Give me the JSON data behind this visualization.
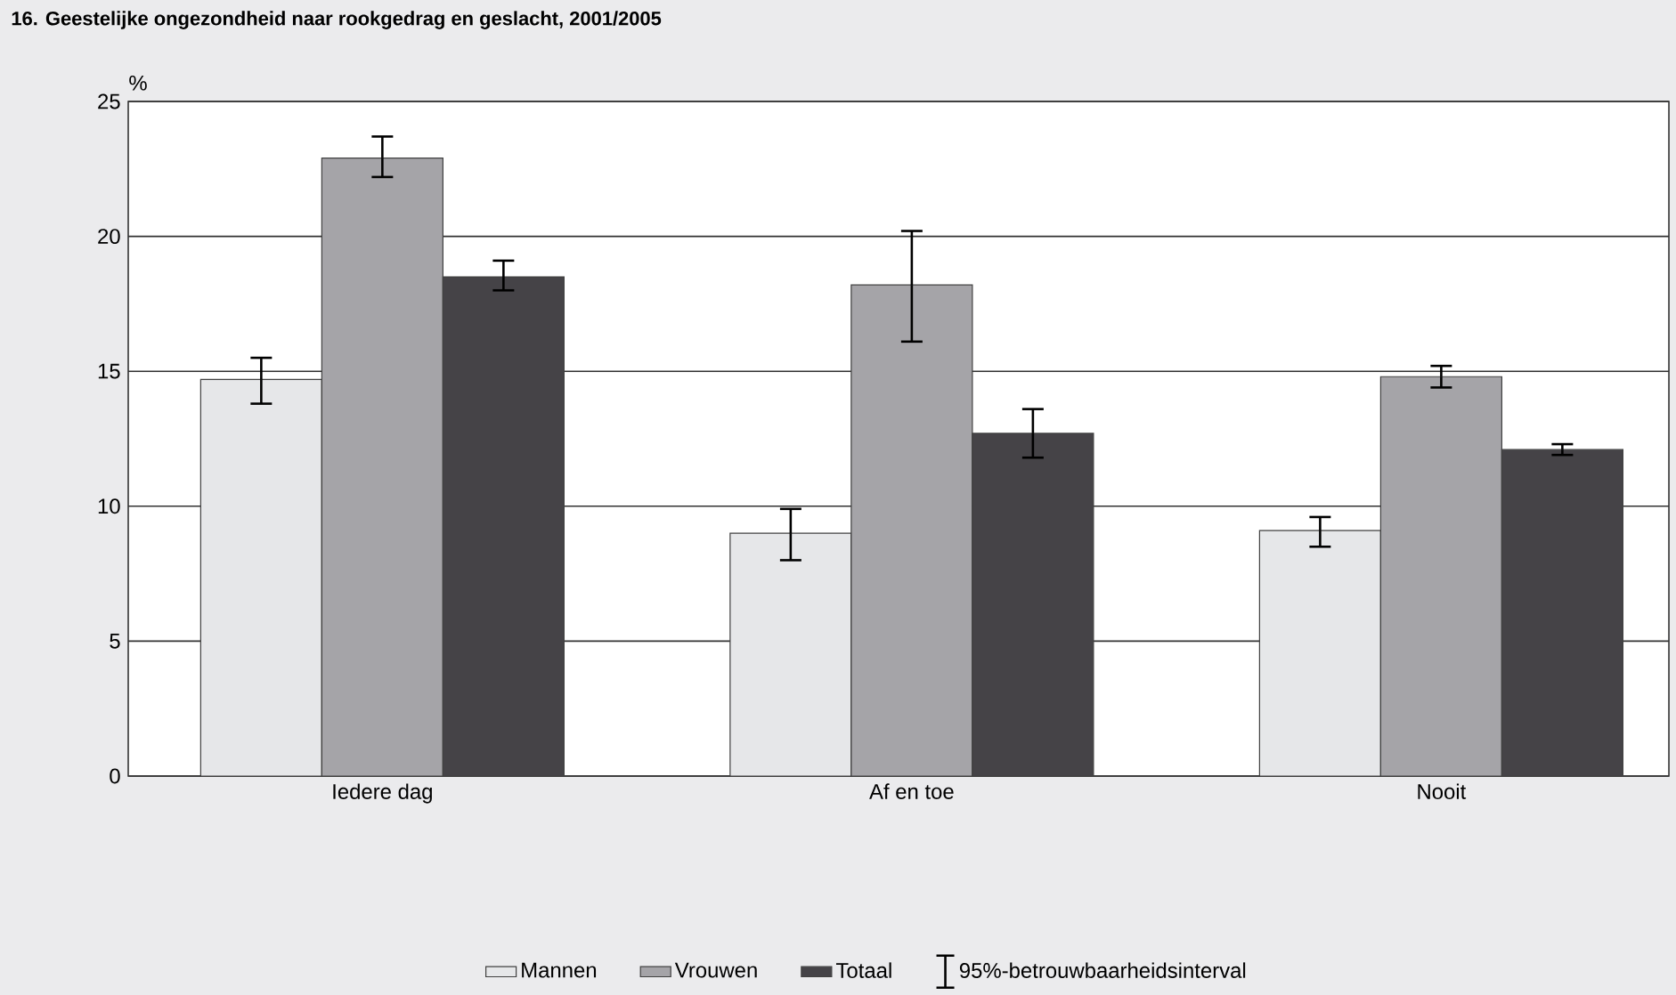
{
  "chart_data": {
    "type": "bar",
    "title": "16. Geestelijke ongezondheid naar rookgedrag en geslacht, 2001/2005",
    "ylabel": "%",
    "categories": [
      "Iedere dag",
      "Af en toe",
      "Nooit"
    ],
    "series": [
      {
        "name": "Mannen",
        "color": "#e6e7e9",
        "values": [
          14.7,
          9.0,
          9.1
        ],
        "errors": [
          [
            13.8,
            15.5
          ],
          [
            8.0,
            9.9
          ],
          [
            8.5,
            9.6
          ]
        ]
      },
      {
        "name": "Vrouwen",
        "color": "#a5a4a8",
        "values": [
          22.9,
          18.2,
          14.8
        ],
        "errors": [
          [
            22.2,
            23.7
          ],
          [
            16.1,
            20.2
          ],
          [
            14.4,
            15.2
          ]
        ]
      },
      {
        "name": "Totaal",
        "color": "#454347",
        "values": [
          18.5,
          12.7,
          12.1
        ],
        "errors": [
          [
            18.0,
            19.1
          ],
          [
            11.8,
            13.6
          ],
          [
            11.9,
            12.3
          ]
        ]
      }
    ],
    "annotations": [
      "95%-betrouwbaarheidsinterval"
    ],
    "ylim": [
      0,
      25
    ],
    "yticks": [
      0,
      5,
      10,
      15,
      20,
      25
    ],
    "grid": "y",
    "legend": "bottom"
  }
}
